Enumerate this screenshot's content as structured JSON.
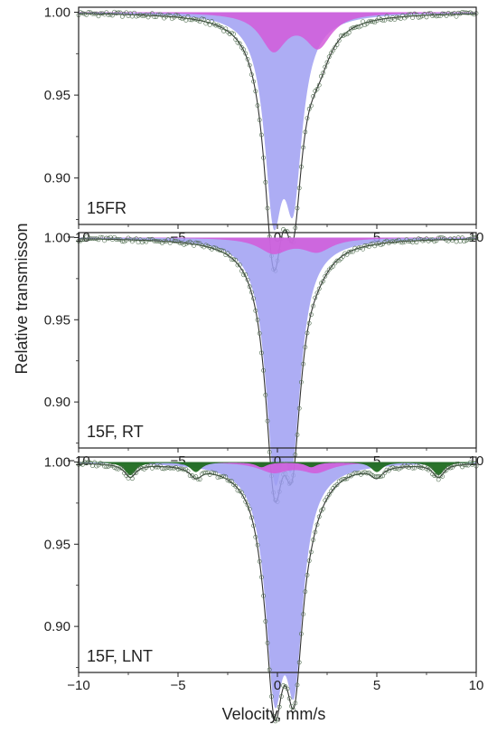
{
  "chart_data": {
    "type": "scatter",
    "figure": {
      "ylabel": "Relative transmisson",
      "xlabel": "Velocity, mm/s"
    },
    "xlim": [
      -10,
      10
    ],
    "xticks": [
      -10,
      -5,
      0,
      5,
      10
    ],
    "ylim": [
      0.872,
      1.003
    ],
    "ytick_labels": [
      "0.90",
      "0.95",
      "1.00"
    ],
    "ytick_values": [
      0.9,
      0.95,
      1.0
    ],
    "colors": {
      "fit_line": "#333333",
      "markers": "#4d6b4d",
      "subspectrum_doublet_main": "#9f9ff2",
      "subspectrum_doublet_magenta": "#d25bd9",
      "subspectrum_sextet": "#1f6b1f"
    },
    "panels": [
      {
        "label": "15FR",
        "subspectra": [
          {
            "kind": "doublet",
            "color_key": "subspectrum_doublet_main",
            "lines": [
              [
                -0.2,
                0.108,
                0.55
              ],
              [
                0.8,
                0.098,
                0.55
              ]
            ]
          },
          {
            "kind": "doublet",
            "color_key": "subspectrum_doublet_magenta",
            "lines": [
              [
                -0.2,
                0.022,
                0.8
              ],
              [
                2.05,
                0.02,
                0.8
              ]
            ]
          }
        ],
        "fit_dip_minima": [
          [
            -0.2,
            0.878
          ],
          [
            0.8,
            0.887
          ],
          [
            2.0,
            0.98
          ]
        ]
      },
      {
        "label": "15F, RT",
        "subspectra": [
          {
            "kind": "doublet",
            "color_key": "subspectrum_doublet_main",
            "lines": [
              [
                -0.15,
                0.12,
                0.55
              ],
              [
                0.75,
                0.108,
                0.55
              ]
            ]
          },
          {
            "kind": "doublet",
            "color_key": "subspectrum_doublet_magenta",
            "lines": [
              [
                -0.2,
                0.009,
                0.9
              ],
              [
                2.0,
                0.008,
                0.9
              ]
            ]
          }
        ],
        "fit_dip_minima": [
          [
            -0.15,
            0.871
          ],
          [
            0.75,
            0.882
          ],
          [
            2.0,
            0.99
          ]
        ]
      },
      {
        "label": "15F, LNT",
        "subspectra": [
          {
            "kind": "doublet",
            "color_key": "subspectrum_doublet_main",
            "lines": [
              [
                -0.15,
                0.122,
                0.55
              ],
              [
                0.85,
                0.115,
                0.55
              ]
            ]
          },
          {
            "kind": "doublet",
            "color_key": "subspectrum_doublet_magenta",
            "lines": [
              [
                -0.2,
                0.006,
                0.9
              ],
              [
                1.95,
                0.006,
                0.9
              ]
            ]
          },
          {
            "kind": "sextet",
            "color_key": "subspectrum_sextet",
            "lines": [
              [
                -7.4,
                0.008,
                0.35
              ],
              [
                -4.1,
                0.006,
                0.35
              ],
              [
                -0.8,
                0.003,
                0.35
              ],
              [
                1.7,
                0.003,
                0.35
              ],
              [
                5.0,
                0.006,
                0.35
              ],
              [
                8.1,
                0.008,
                0.35
              ]
            ]
          }
        ],
        "fit_dip_minima": [
          [
            -0.15,
            0.87
          ],
          [
            0.85,
            0.878
          ],
          [
            2.0,
            0.99
          ]
        ]
      }
    ]
  }
}
